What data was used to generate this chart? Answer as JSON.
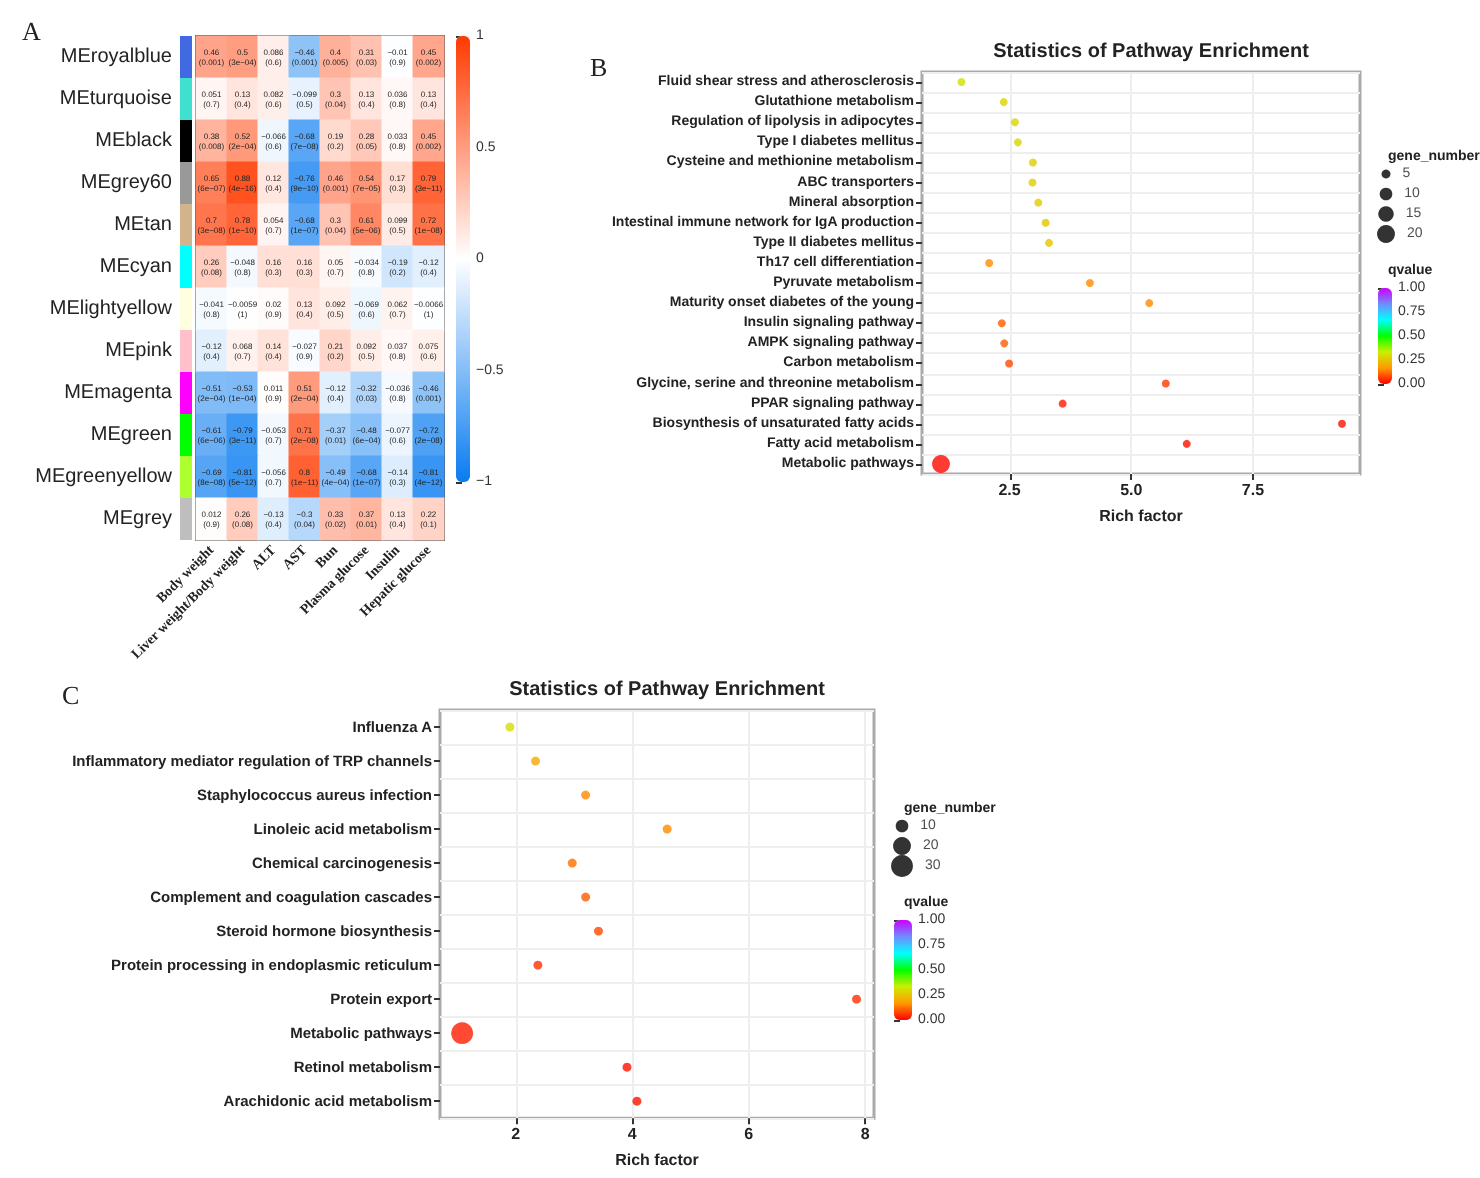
{
  "chart_data": [
    {
      "type": "heatmap",
      "annotations": [
        "A"
      ],
      "categories": [
        "Body weight",
        "Liver weight/Body weight",
        "ALT",
        "AST",
        "Bun",
        "Plasma glucose",
        "Insulin",
        "Hepatic glucose"
      ],
      "y_categories": [
        "MEroyalblue",
        "MEturquoise",
        "MEblack",
        "MEgrey60",
        "MEtan",
        "MEcyan",
        "MElightyellow",
        "MEpink",
        "MEmagenta",
        "MEgreen",
        "MEgreenyellow",
        "MEgrey"
      ],
      "cells": [
        [
          0.46,
          0.5,
          0.086,
          -0.46,
          0.4,
          0.31,
          -0.01,
          0.45
        ],
        [
          0.051,
          0.13,
          0.082,
          -0.099,
          0.3,
          0.13,
          0.036,
          0.13
        ],
        [
          0.38,
          0.52,
          -0.066,
          -0.68,
          0.19,
          0.28,
          0.033,
          0.45
        ],
        [
          0.65,
          0.88,
          0.12,
          -0.76,
          0.46,
          0.54,
          0.17,
          0.79
        ],
        [
          0.7,
          0.78,
          0.054,
          -0.68,
          0.3,
          0.61,
          0.099,
          0.72
        ],
        [
          0.26,
          -0.048,
          0.16,
          0.16,
          0.05,
          -0.034,
          -0.19,
          -0.12
        ],
        [
          -0.041,
          -0.0059,
          0.02,
          0.13,
          0.092,
          -0.069,
          0.062,
          -0.0066
        ],
        [
          -0.12,
          0.068,
          0.14,
          -0.027,
          0.21,
          0.092,
          0.037,
          0.075
        ],
        [
          -0.51,
          -0.53,
          0.011,
          0.51,
          -0.12,
          -0.32,
          -0.036,
          -0.46
        ],
        [
          -0.61,
          -0.79,
          -0.053,
          0.71,
          -0.37,
          -0.48,
          -0.077,
          -0.72
        ],
        [
          -0.69,
          -0.81,
          -0.056,
          0.8,
          -0.49,
          -0.68,
          -0.14,
          -0.81
        ],
        [
          0.012,
          0.26,
          -0.13,
          -0.3,
          0.33,
          0.37,
          0.13,
          0.22
        ]
      ],
      "cell_labels": [
        [
          "0.46\n(0.001)",
          "0.5\n(3e−04)",
          "0.086\n(0.6)",
          "−0.46\n(0.001)",
          "0.4\n(0.005)",
          "0.31\n(0.03)",
          "−0.01\n(0.9)",
          "0.45\n(0.002)"
        ],
        [
          "0.051\n(0.7)",
          "0.13\n(0.4)",
          "0.082\n(0.6)",
          "−0.099\n(0.5)",
          "0.3\n(0.04)",
          "0.13\n(0.4)",
          "0.036\n(0.8)",
          "0.13\n(0.4)"
        ],
        [
          "0.38\n(0.008)",
          "0.52\n(2e−04)",
          "−0.066\n(0.6)",
          "−0.68\n(7e−08)",
          "0.19\n(0.2)",
          "0.28\n(0.05)",
          "0.033\n(0.8)",
          "0.45\n(0.002)"
        ],
        [
          "0.65\n(6e−07)",
          "0.88\n(4e−16)",
          "0.12\n(0.4)",
          "−0.76\n(9e−10)",
          "0.46\n(0.001)",
          "0.54\n(7e−05)",
          "0.17\n(0.3)",
          "0.79\n(3e−11)"
        ],
        [
          "0.7\n(3e−08)",
          "0.78\n(1e−10)",
          "0.054\n(0.7)",
          "−0.68\n(1e−07)",
          "0.3\n(0.04)",
          "0.61\n(5e−06)",
          "0.099\n(0.5)",
          "0.72\n(1e−08)"
        ],
        [
          "0.26\n(0.08)",
          "−0.048\n(0.8)",
          "0.16\n(0.3)",
          "0.16\n(0.3)",
          "0.05\n(0.7)",
          "−0.034\n(0.8)",
          "−0.19\n(0.2)",
          "−0.12\n(0.4)"
        ],
        [
          "−0.041\n(0.8)",
          "−0.0059\n(1)",
          "0.02\n(0.9)",
          "0.13\n(0.4)",
          "0.092\n(0.5)",
          "−0.069\n(0.6)",
          "0.062\n(0.7)",
          "−0.0066\n(1)"
        ],
        [
          "−0.12\n(0.4)",
          "0.068\n(0.7)",
          "0.14\n(0.4)",
          "−0.027\n(0.9)",
          "0.21\n(0.2)",
          "0.092\n(0.5)",
          "0.037\n(0.8)",
          "0.075\n(0.6)"
        ],
        [
          "−0.51\n(2e−04)",
          "−0.53\n(1e−04)",
          "0.011\n(0.9)",
          "0.51\n(2e−04)",
          "−0.12\n(0.4)",
          "−0.32\n(0.03)",
          "−0.036\n(0.8)",
          "−0.46\n(0.001)"
        ],
        [
          "−0.61\n(6e−06)",
          "−0.79\n(3e−11)",
          "−0.053\n(0.7)",
          "0.71\n(2e−08)",
          "−0.37\n(0.01)",
          "−0.48\n(6e−04)",
          "−0.077\n(0.6)",
          "−0.72\n(2e−08)"
        ],
        [
          "−0.69\n(8e−08)",
          "−0.81\n(5e−12)",
          "−0.056\n(0.7)",
          "0.8\n(1e−11)",
          "−0.49\n(4e−04)",
          "−0.68\n(1e−07)",
          "−0.14\n(0.3)",
          "−0.81\n(4e−12)"
        ],
        [
          "0.012\n(0.9)",
          "0.26\n(0.08)",
          "−0.13\n(0.4)",
          "−0.3\n(0.04)",
          "0.33\n(0.02)",
          "0.37\n(0.01)",
          "0.13\n(0.4)",
          "0.22\n(0.1)"
        ]
      ],
      "clim": [
        -1,
        1
      ],
      "cticks": [
        {
          "value": -1,
          "label": "−1"
        },
        {
          "value": -0.5,
          "label": "−0.5"
        },
        0,
        0.5,
        1
      ]
    },
    {
      "type": "bubble",
      "title": "Statistics of Pathway Enrichment",
      "xlabel": "Rich factor",
      "legend_title": "gene_number",
      "clabel": "qvalue",
      "annotations": [
        "B"
      ],
      "orientation": "horizontal",
      "marker": "circle",
      "grid": true,
      "categories": [
        "Fluid shear stress and atherosclerosis",
        "Glutathione metabolism",
        "Regulation of lipolysis in adipocytes",
        "Type I diabetes mellitus",
        "Cysteine and methionine metabolism",
        "ABC transporters",
        "Mineral absorption",
        "Intestinal immune network for IgA production",
        "Type II diabetes mellitus",
        "Th17 cell differentiation",
        "Pyruvate metabolism",
        "Maturity onset diabetes of the young",
        "Insulin signaling pathway",
        "AMPK signaling pathway",
        "Carbon metabolism",
        "Glycine, serine and threonine metabolism",
        "PPAR signaling pathway",
        "Biosynthesis of unsaturated fatty acids",
        "Fatty acid metabolism",
        "Metabolic pathways"
      ],
      "values": [
        1.51,
        2.38,
        2.61,
        2.67,
        2.98,
        2.97,
        3.09,
        3.24,
        3.31,
        2.08,
        4.15,
        5.37,
        2.34,
        2.39,
        2.49,
        5.71,
        3.59,
        9.33,
        6.14,
        1.09
      ],
      "sizes": [
        4,
        4,
        4,
        4,
        4,
        4,
        4,
        4,
        4,
        4,
        4,
        4,
        4,
        4,
        4,
        4,
        4,
        4,
        4,
        20
      ],
      "size_legend": [
        5,
        10,
        15,
        20
      ],
      "cvalues": [
        0.3,
        0.28,
        0.28,
        0.28,
        0.27,
        0.27,
        0.26,
        0.25,
        0.25,
        0.15,
        0.15,
        0.15,
        0.1,
        0.1,
        0.08,
        0.06,
        0.03,
        0.02,
        0.02,
        0.01
      ],
      "clim": [
        0,
        1
      ],
      "cticks": [
        {
          "value": 0,
          "label": "0.00"
        },
        0.25,
        {
          "value": 0.5,
          "label": "0.50"
        },
        0.75,
        {
          "value": 1,
          "label": "1.00"
        }
      ],
      "xlim": [
        0.7,
        9.7
      ],
      "xticks": [
        2.5,
        {
          "value": 5,
          "label": "5.0"
        },
        7.5
      ]
    },
    {
      "type": "bubble",
      "title": "Statistics of Pathway Enrichment",
      "xlabel": "Rich factor",
      "legend_title": "gene_number",
      "clabel": "qvalue",
      "annotations": [
        "C"
      ],
      "orientation": "horizontal",
      "marker": "circle",
      "grid": true,
      "categories": [
        "Influenza A",
        "Inflammatory mediator regulation of TRP channels",
        "Staphylococcus aureus infection",
        "Linoleic acid metabolism",
        "Chemical carcinogenesis",
        "Complement and coagulation cascades",
        "Steroid hormone biosynthesis",
        "Protein processing in endoplasmic reticulum",
        "Protein export",
        "Metabolic pathways",
        "Retinol metabolism",
        "Arachidonic acid metabolism"
      ],
      "values": [
        1.9,
        2.34,
        3.2,
        4.6,
        2.97,
        3.2,
        3.42,
        2.38,
        7.85,
        1.08,
        3.91,
        4.08
      ],
      "sizes": [
        5,
        5,
        5,
        5,
        5,
        5,
        5,
        5,
        5,
        30,
        5,
        5
      ],
      "size_legend": [
        10,
        20,
        30
      ],
      "cvalues": [
        0.3,
        0.2,
        0.15,
        0.15,
        0.12,
        0.1,
        0.08,
        0.05,
        0.05,
        0.03,
        0.02,
        0.02
      ],
      "clim": [
        0,
        1
      ],
      "cticks": [
        {
          "value": 0,
          "label": "0.00"
        },
        0.25,
        {
          "value": 0.5,
          "label": "0.50"
        },
        0.75,
        {
          "value": 1,
          "label": "1.00"
        }
      ],
      "xlim": [
        0.7,
        8.15
      ],
      "xticks": [
        2,
        4,
        6,
        8
      ]
    }
  ]
}
